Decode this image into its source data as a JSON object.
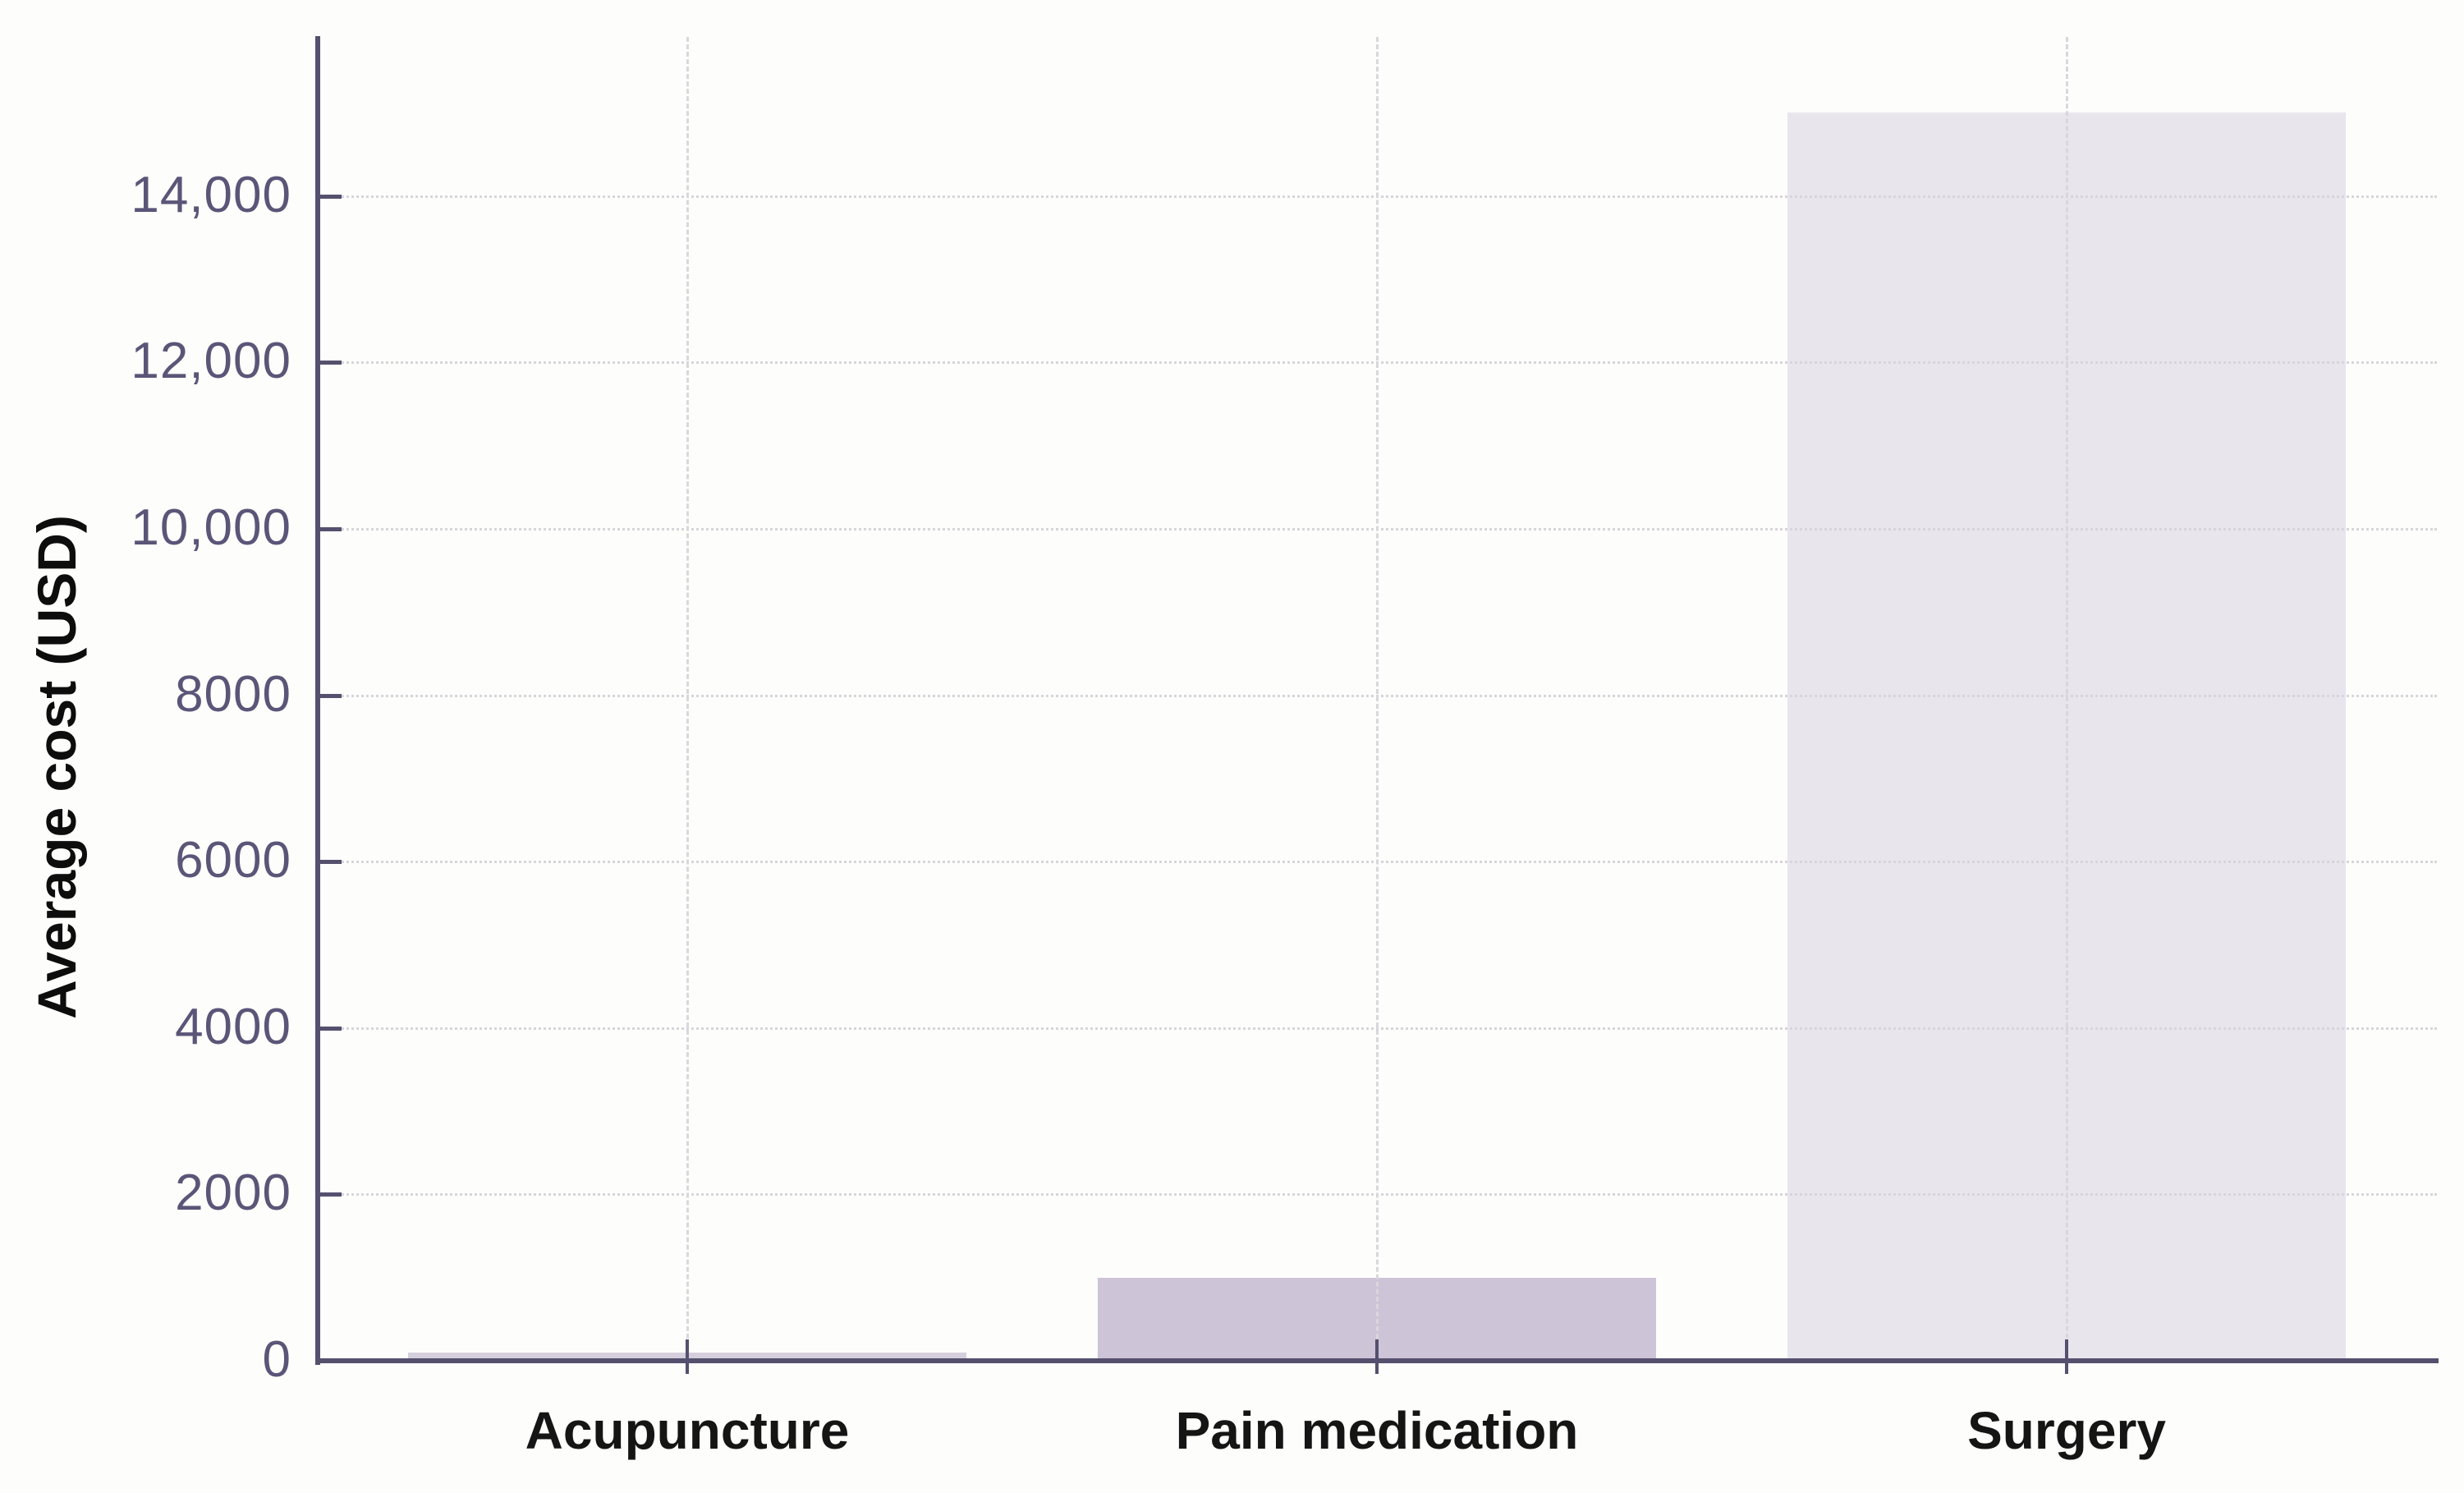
{
  "chart_data": {
    "type": "bar",
    "title": "",
    "xlabel": "",
    "ylabel": "Average cost (USD)",
    "categories": [
      "Acupuncture",
      "Pain medication",
      "Surgery"
    ],
    "values": [
      100,
      1000,
      15000
    ],
    "bar_colors": [
      "#d5cfdd",
      "#cdc4d8",
      "#e8e5ed"
    ],
    "ylim": [
      0,
      15900
    ],
    "yticks": [
      {
        "value": 0,
        "label": "0"
      },
      {
        "value": 2000,
        "label": "2000"
      },
      {
        "value": 4000,
        "label": "4000"
      },
      {
        "value": 6000,
        "label": "6000"
      },
      {
        "value": 8000,
        "label": "8000"
      },
      {
        "value": 10000,
        "label": "10,000"
      },
      {
        "value": 12000,
        "label": "12,000"
      },
      {
        "value": 14000,
        "label": "14,000"
      }
    ],
    "grid": {
      "horizontal_style": "dotted",
      "vertical_style": "dashed",
      "color": "#d8d6db"
    },
    "axis_color": "#55506e",
    "tick_label_color": "#5b5578",
    "category_label_color": "#151515",
    "legend": "none",
    "background_color": "#fdfdfb"
  }
}
